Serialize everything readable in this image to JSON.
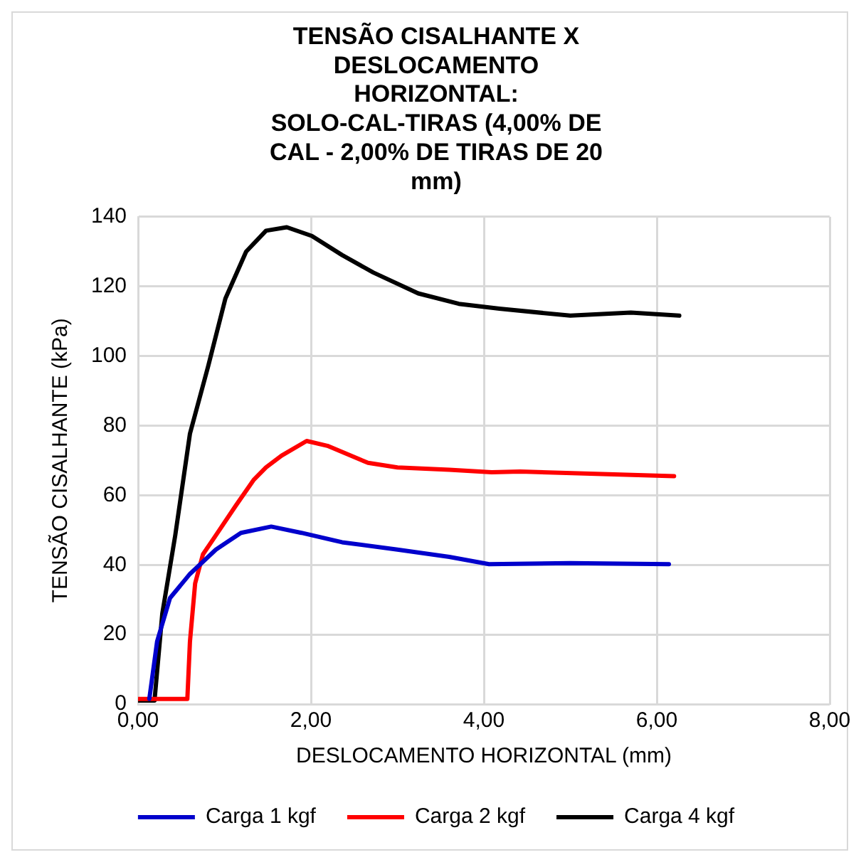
{
  "chart_data": {
    "type": "line",
    "title": "TENSÃO CISALHANTE X DESLOCAMENTO HORIZONTAL: SOLO-CAL-TIRAS (4,00% DE CAL - 2,00% DE TIRAS DE 20 mm)",
    "xlabel": "DESLOCAMENTO HORIZONTAL (mm)",
    "ylabel": "TENSÃO CISALHANTE (kPa)",
    "xlim": [
      0,
      8
    ],
    "xticks": [
      {
        "value": 0,
        "label": "0,00"
      },
      {
        "value": 2,
        "label": "2,00"
      },
      {
        "value": 4,
        "label": "4,00"
      },
      {
        "value": 6,
        "label": "6,00"
      },
      {
        "value": 8,
        "label": "8,00"
      }
    ],
    "ylim": [
      0,
      140
    ],
    "yticks": [
      0,
      20,
      40,
      60,
      80,
      100,
      120,
      140
    ],
    "grid": true,
    "legend": "bottom",
    "marker": "none",
    "line_style": "solid",
    "series": [
      {
        "name": "Carga 1 kgf",
        "color": "#0000cc",
        "x": [
          0.13,
          0.22,
          0.37,
          0.6,
          0.9,
          1.19,
          1.54,
          1.89,
          2.36,
          3.0,
          3.6,
          4.06,
          5.0,
          6.14
        ],
        "values": [
          1.5,
          18,
          30.5,
          37.4,
          44.4,
          49.2,
          51,
          49.2,
          46.5,
          44.4,
          42.3,
          40.2,
          40.5,
          40.2
        ]
      },
      {
        "name": "Carga 2 kgf",
        "color": "#ff0000",
        "x": [
          0,
          0.57,
          0.6,
          0.66,
          0.75,
          0.9,
          1.13,
          1.34,
          1.48,
          1.66,
          1.95,
          2.19,
          2.66,
          3.0,
          3.6,
          4.09,
          4.42,
          6.2
        ],
        "values": [
          1.5,
          1.5,
          18,
          34.7,
          43,
          48.5,
          57,
          64.5,
          68,
          71.4,
          75.6,
          74.2,
          69.3,
          68,
          67.3,
          66.6,
          66.8,
          65.5
        ]
      },
      {
        "name": "Carga 4 kgf",
        "color": "#000000",
        "x": [
          0,
          0.19,
          0.28,
          0.43,
          0.6,
          0.81,
          1.01,
          1.25,
          1.48,
          1.72,
          2.01,
          2.36,
          2.72,
          3.24,
          3.71,
          4.18,
          5.0,
          5.7,
          6.26
        ],
        "values": [
          1,
          1,
          26,
          48.5,
          77.7,
          97,
          116.5,
          130,
          136,
          137,
          134.5,
          129,
          124,
          118,
          115,
          113.6,
          111.6,
          112.5,
          111.6
        ]
      }
    ]
  }
}
